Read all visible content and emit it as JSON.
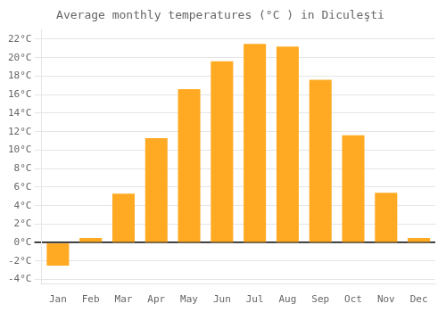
{
  "chart_data": {
    "type": "bar",
    "title": "Average monthly temperatures (°C ) in Diculeşti",
    "categories": [
      "Jan",
      "Feb",
      "Mar",
      "Apr",
      "May",
      "Jun",
      "Jul",
      "Aug",
      "Sep",
      "Oct",
      "Nov",
      "Dec"
    ],
    "values": [
      -2.5,
      0.5,
      5.3,
      11.3,
      16.6,
      19.6,
      21.5,
      21.2,
      17.6,
      11.6,
      5.4,
      0.5
    ],
    "color": "#FFAA22",
    "ylim": [
      -4.5,
      23
    ],
    "yticks": [
      {
        "value": -4,
        "label": "-4°C"
      },
      {
        "value": -2,
        "label": "-2°C"
      },
      {
        "value": 0,
        "label": "0°C"
      },
      {
        "value": 2,
        "label": "2°C"
      },
      {
        "value": 4,
        "label": "4°C"
      },
      {
        "value": 6,
        "label": "6°C"
      },
      {
        "value": 8,
        "label": "8°C"
      },
      {
        "value": 10,
        "label": "10°C"
      },
      {
        "value": 12,
        "label": "12°C"
      },
      {
        "value": 14,
        "label": "14°C"
      },
      {
        "value": 16,
        "label": "16°C"
      },
      {
        "value": 18,
        "label": "18°C"
      },
      {
        "value": 20,
        "label": "20°C"
      },
      {
        "value": 22,
        "label": "22°C"
      }
    ],
    "grid": true
  }
}
